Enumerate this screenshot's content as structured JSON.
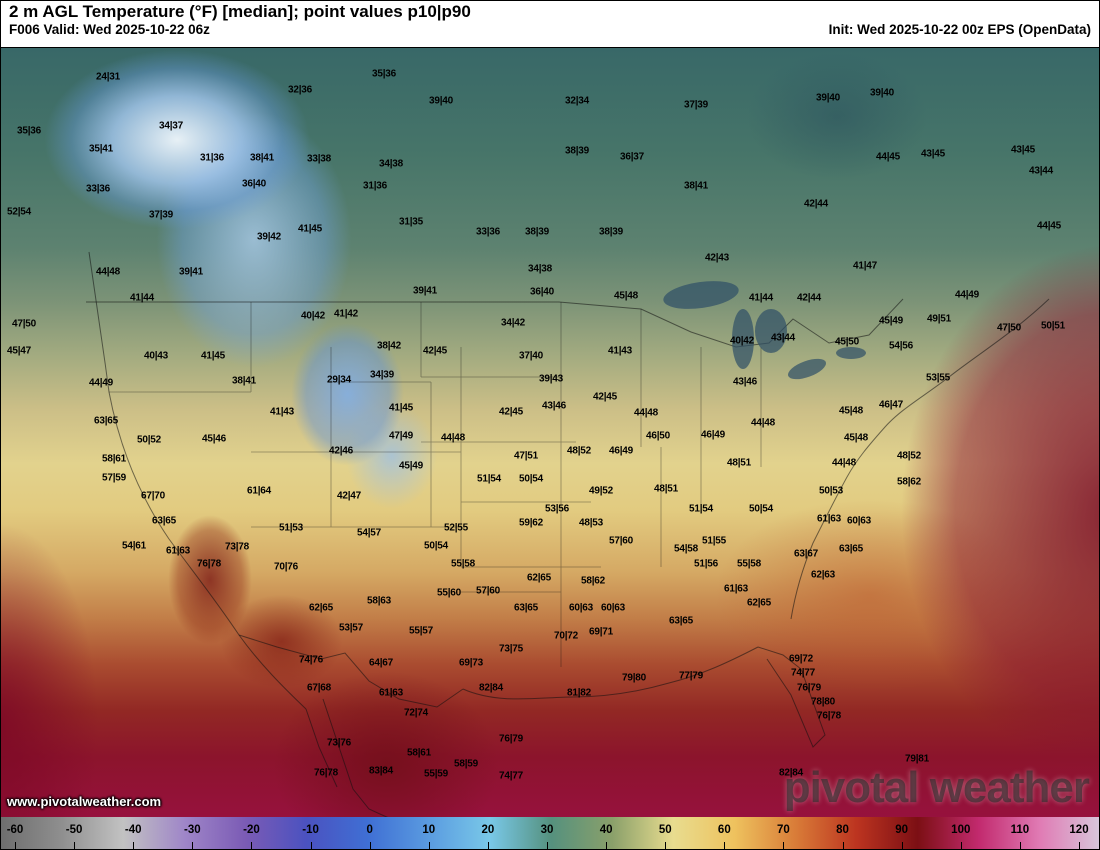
{
  "header": {
    "title": "2 m AGL Temperature (°F) [median]; point values p10|p90",
    "valid": "F006 Valid: Wed 2025-10-22 06z",
    "init": "Init: Wed 2025-10-22 00z EPS (OpenData)"
  },
  "watermark": {
    "brand": "pivotal weather",
    "site": "www.pivotalweather.com"
  },
  "colorbar": {
    "units": "°F",
    "ticks": [
      -60,
      -50,
      -40,
      -30,
      -20,
      -10,
      0,
      10,
      20,
      30,
      40,
      50,
      60,
      70,
      80,
      90,
      100,
      110,
      120
    ],
    "stops": [
      [
        -60,
        "#6e6e6e"
      ],
      [
        -50,
        "#8f8f8f"
      ],
      [
        -40,
        "#c2c2c2"
      ],
      [
        -30,
        "#9f86c8"
      ],
      [
        -20,
        "#7b5bb5"
      ],
      [
        -10,
        "#4b52c0"
      ],
      [
        0,
        "#3f6fd4"
      ],
      [
        10,
        "#5a9be0"
      ],
      [
        20,
        "#79c8e8"
      ],
      [
        30,
        "#55917e"
      ],
      [
        40,
        "#8aa06a"
      ],
      [
        50,
        "#e8dc8f"
      ],
      [
        60,
        "#eec25e"
      ],
      [
        70,
        "#d97c38"
      ],
      [
        80,
        "#bc3420"
      ],
      [
        90,
        "#7c0f14"
      ],
      [
        100,
        "#c22a6e"
      ],
      [
        110,
        "#e07bb4"
      ],
      [
        120,
        "#d8c8dc"
      ]
    ]
  },
  "map": {
    "points": [
      [
        107,
        76,
        "24|31"
      ],
      [
        299,
        89,
        "32|36"
      ],
      [
        383,
        73,
        "35|36"
      ],
      [
        440,
        100,
        "39|40"
      ],
      [
        576,
        100,
        "32|34"
      ],
      [
        695,
        104,
        "37|39"
      ],
      [
        827,
        97,
        "39|40"
      ],
      [
        881,
        92,
        "39|40"
      ],
      [
        28,
        130,
        "35|36"
      ],
      [
        170,
        125,
        "34|37"
      ],
      [
        100,
        148,
        "35|41"
      ],
      [
        211,
        157,
        "31|36"
      ],
      [
        261,
        157,
        "38|41"
      ],
      [
        318,
        158,
        "33|38"
      ],
      [
        390,
        163,
        "34|38"
      ],
      [
        576,
        150,
        "38|39"
      ],
      [
        631,
        156,
        "36|37"
      ],
      [
        887,
        156,
        "44|45"
      ],
      [
        932,
        153,
        "43|45"
      ],
      [
        1022,
        149,
        "43|45"
      ],
      [
        97,
        188,
        "33|36"
      ],
      [
        253,
        183,
        "36|40"
      ],
      [
        374,
        185,
        "31|36"
      ],
      [
        695,
        185,
        "38|41"
      ],
      [
        1040,
        170,
        "43|44"
      ],
      [
        18,
        211,
        "52|54"
      ],
      [
        160,
        214,
        "37|39"
      ],
      [
        815,
        203,
        "42|44"
      ],
      [
        410,
        221,
        "31|35"
      ],
      [
        487,
        231,
        "33|36"
      ],
      [
        536,
        231,
        "38|39"
      ],
      [
        610,
        231,
        "38|39"
      ],
      [
        1048,
        225,
        "44|45"
      ],
      [
        268,
        236,
        "39|42"
      ],
      [
        309,
        228,
        "41|45"
      ],
      [
        716,
        257,
        "42|43"
      ],
      [
        864,
        265,
        "41|47"
      ],
      [
        107,
        271,
        "44|48"
      ],
      [
        190,
        271,
        "39|41"
      ],
      [
        539,
        268,
        "34|38"
      ],
      [
        141,
        297,
        "41|44"
      ],
      [
        424,
        290,
        "39|41"
      ],
      [
        541,
        291,
        "36|40"
      ],
      [
        625,
        295,
        "45|48"
      ],
      [
        760,
        297,
        "41|44"
      ],
      [
        808,
        297,
        "42|44"
      ],
      [
        966,
        294,
        "44|49"
      ],
      [
        23,
        323,
        "47|50"
      ],
      [
        312,
        315,
        "40|42"
      ],
      [
        345,
        313,
        "41|42"
      ],
      [
        512,
        322,
        "34|42"
      ],
      [
        890,
        320,
        "45|49"
      ],
      [
        938,
        318,
        "49|51"
      ],
      [
        1008,
        327,
        "47|50"
      ],
      [
        1052,
        325,
        "50|51"
      ],
      [
        18,
        350,
        "45|47"
      ],
      [
        155,
        355,
        "40|43"
      ],
      [
        212,
        355,
        "41|45"
      ],
      [
        388,
        345,
        "38|42"
      ],
      [
        434,
        350,
        "42|45"
      ],
      [
        530,
        355,
        "37|40"
      ],
      [
        619,
        350,
        "41|43"
      ],
      [
        741,
        340,
        "40|42"
      ],
      [
        782,
        337,
        "43|44"
      ],
      [
        846,
        341,
        "45|50"
      ],
      [
        900,
        345,
        "54|56"
      ],
      [
        937,
        377,
        "53|55"
      ],
      [
        100,
        382,
        "44|49"
      ],
      [
        243,
        380,
        "38|41"
      ],
      [
        338,
        379,
        "29|34"
      ],
      [
        381,
        374,
        "34|39"
      ],
      [
        550,
        378,
        "39|43"
      ],
      [
        744,
        381,
        "43|46"
      ],
      [
        105,
        420,
        "63|65"
      ],
      [
        281,
        411,
        "41|43"
      ],
      [
        400,
        407,
        "41|45"
      ],
      [
        510,
        411,
        "42|45"
      ],
      [
        553,
        405,
        "43|46"
      ],
      [
        604,
        396,
        "42|45"
      ],
      [
        645,
        412,
        "44|48"
      ],
      [
        762,
        422,
        "44|48"
      ],
      [
        850,
        410,
        "45|48"
      ],
      [
        890,
        404,
        "46|47"
      ],
      [
        148,
        439,
        "50|52"
      ],
      [
        213,
        438,
        "45|46"
      ],
      [
        340,
        450,
        "42|46"
      ],
      [
        400,
        435,
        "47|49"
      ],
      [
        452,
        437,
        "44|48"
      ],
      [
        657,
        435,
        "46|50"
      ],
      [
        712,
        434,
        "46|49"
      ],
      [
        855,
        437,
        "45|48"
      ],
      [
        410,
        465,
        "45|49"
      ],
      [
        525,
        455,
        "47|51"
      ],
      [
        578,
        450,
        "48|52"
      ],
      [
        620,
        450,
        "46|49"
      ],
      [
        738,
        462,
        "48|51"
      ],
      [
        843,
        462,
        "44|48"
      ],
      [
        908,
        455,
        "48|52"
      ],
      [
        113,
        458,
        "58|61"
      ],
      [
        113,
        477,
        "57|59"
      ],
      [
        152,
        495,
        "67|70"
      ],
      [
        258,
        490,
        "61|64"
      ],
      [
        348,
        495,
        "42|47"
      ],
      [
        488,
        478,
        "51|54"
      ],
      [
        530,
        478,
        "50|54"
      ],
      [
        600,
        490,
        "49|52"
      ],
      [
        665,
        488,
        "48|51"
      ],
      [
        830,
        490,
        "50|53"
      ],
      [
        908,
        481,
        "58|62"
      ],
      [
        556,
        508,
        "53|56"
      ],
      [
        700,
        508,
        "51|54"
      ],
      [
        760,
        508,
        "50|54"
      ],
      [
        828,
        518,
        "61|63"
      ],
      [
        858,
        520,
        "60|63"
      ],
      [
        163,
        520,
        "63|65"
      ],
      [
        290,
        527,
        "51|53"
      ],
      [
        368,
        532,
        "54|57"
      ],
      [
        455,
        527,
        "52|55"
      ],
      [
        530,
        522,
        "59|62"
      ],
      [
        590,
        522,
        "48|53"
      ],
      [
        620,
        540,
        "57|60"
      ],
      [
        685,
        548,
        "54|58"
      ],
      [
        713,
        540,
        "51|55"
      ],
      [
        133,
        545,
        "54|61"
      ],
      [
        177,
        550,
        "61|63"
      ],
      [
        236,
        546,
        "73|78"
      ],
      [
        805,
        553,
        "63|67"
      ],
      [
        850,
        548,
        "63|65"
      ],
      [
        208,
        563,
        "76|78"
      ],
      [
        285,
        566,
        "70|76"
      ],
      [
        435,
        545,
        "50|54"
      ],
      [
        462,
        563,
        "55|58"
      ],
      [
        705,
        563,
        "51|56"
      ],
      [
        748,
        563,
        "55|58"
      ],
      [
        822,
        574,
        "62|63"
      ],
      [
        320,
        607,
        "62|65"
      ],
      [
        378,
        600,
        "58|63"
      ],
      [
        448,
        592,
        "55|60"
      ],
      [
        487,
        590,
        "57|60"
      ],
      [
        538,
        577,
        "62|65"
      ],
      [
        592,
        580,
        "58|62"
      ],
      [
        735,
        588,
        "61|63"
      ],
      [
        758,
        602,
        "62|65"
      ],
      [
        525,
        607,
        "63|65"
      ],
      [
        580,
        607,
        "60|63"
      ],
      [
        612,
        607,
        "60|63"
      ],
      [
        680,
        620,
        "63|65"
      ],
      [
        350,
        627,
        "53|57"
      ],
      [
        420,
        630,
        "55|57"
      ],
      [
        565,
        635,
        "70|72"
      ],
      [
        600,
        631,
        "69|71"
      ],
      [
        510,
        648,
        "73|75"
      ],
      [
        310,
        659,
        "74|76"
      ],
      [
        380,
        662,
        "64|67"
      ],
      [
        470,
        662,
        "69|73"
      ],
      [
        800,
        658,
        "69|72"
      ],
      [
        318,
        687,
        "67|68"
      ],
      [
        390,
        692,
        "61|63"
      ],
      [
        490,
        687,
        "82|84"
      ],
      [
        578,
        692,
        "81|82"
      ],
      [
        633,
        677,
        "79|80"
      ],
      [
        690,
        675,
        "77|79"
      ],
      [
        802,
        672,
        "74|77"
      ],
      [
        808,
        687,
        "76|79"
      ],
      [
        415,
        712,
        "72|74"
      ],
      [
        822,
        701,
        "78|80"
      ],
      [
        828,
        715,
        "76|78"
      ],
      [
        338,
        742,
        "73|76"
      ],
      [
        510,
        738,
        "76|79"
      ],
      [
        418,
        752,
        "58|61"
      ],
      [
        465,
        763,
        "58|59"
      ],
      [
        380,
        770,
        "83|84"
      ],
      [
        325,
        772,
        "76|78"
      ],
      [
        435,
        773,
        "55|59"
      ],
      [
        510,
        775,
        "74|77"
      ],
      [
        790,
        772,
        "82|84"
      ],
      [
        916,
        758,
        "79|81"
      ]
    ]
  }
}
